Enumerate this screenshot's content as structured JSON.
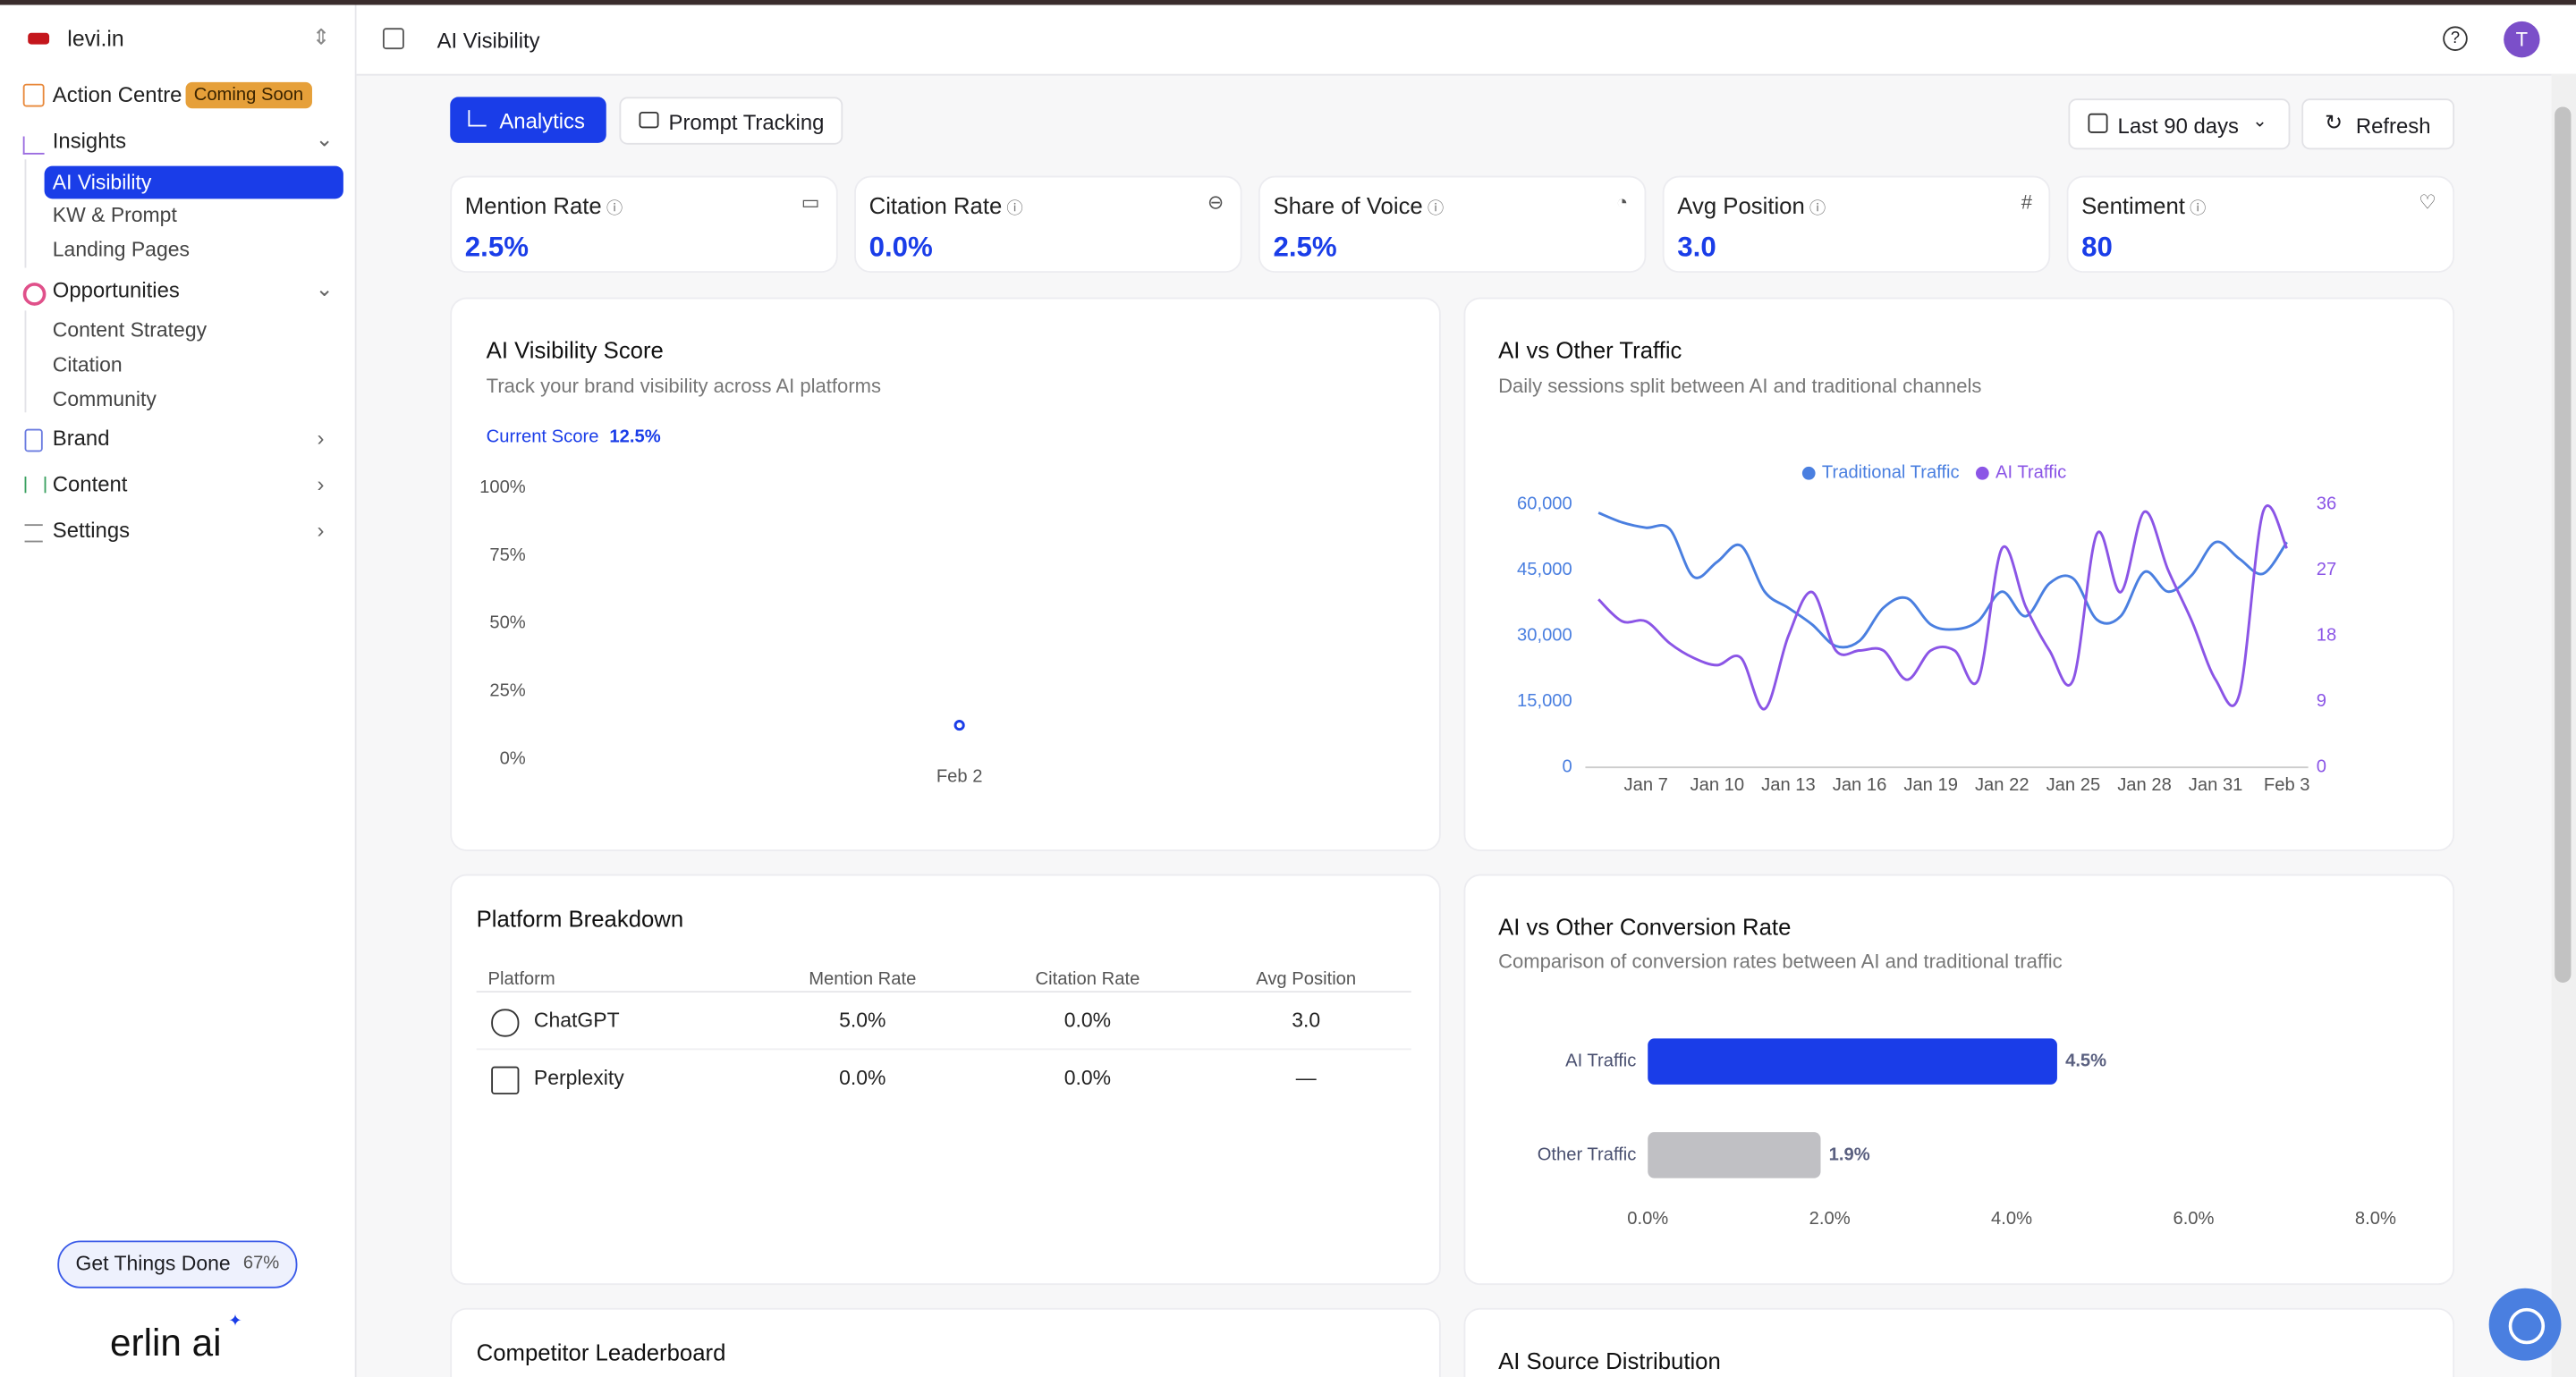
{
  "sidebar": {
    "workspace": "levi.in",
    "action_centre": "Action Centre",
    "badge": "Coming Soon",
    "insights": {
      "label": "Insights",
      "items": [
        "AI Visibility",
        "KW & Prompt",
        "Landing Pages"
      ]
    },
    "opportunities": {
      "label": "Opportunities",
      "items": [
        "Content Strategy",
        "Citation",
        "Community"
      ]
    },
    "brand": "Brand",
    "content": "Content",
    "settings": "Settings",
    "progress": {
      "label": "Get Things Done",
      "value": "67%"
    },
    "logo": "erlin ai"
  },
  "header": {
    "title": "AI Visibility",
    "avatar": "T"
  },
  "toolbar": {
    "tabs": [
      "Analytics",
      "Prompt Tracking"
    ],
    "range": "Last 90 days",
    "refresh": "Refresh"
  },
  "kpis": [
    {
      "label": "Mention Rate",
      "value": "2.5%"
    },
    {
      "label": "Citation Rate",
      "value": "0.0%"
    },
    {
      "label": "Share of Voice",
      "value": "2.5%"
    },
    {
      "label": "Avg Position",
      "value": "3.0"
    },
    {
      "label": "Sentiment",
      "value": "80"
    }
  ],
  "chart_data": [
    {
      "type": "line",
      "title": "AI Visibility Score",
      "subtitle": "Track your brand visibility across AI platforms",
      "current_score_label": "Current Score",
      "current_score": "12.5%",
      "categories": [
        "Feb 2"
      ],
      "values": [
        12.5
      ],
      "color": "#1a3de8",
      "ylim": [
        0,
        100
      ],
      "yticks": [
        {
          "value": 0,
          "label": "0%"
        },
        {
          "value": 25,
          "label": "25%"
        },
        {
          "value": 50,
          "label": "50%"
        },
        {
          "value": 75,
          "label": "75%"
        },
        {
          "value": 100,
          "label": "100%"
        }
      ]
    },
    {
      "type": "line",
      "title": "AI vs Other Traffic",
      "subtitle": "Daily sessions split between AI and traditional channels",
      "categories": [
        null,
        null,
        "Jan 7",
        null,
        null,
        "Jan 10",
        null,
        null,
        "Jan 13",
        null,
        null,
        "Jan 16",
        null,
        null,
        "Jan 19",
        null,
        null,
        "Jan 22",
        null,
        null,
        "Jan 25",
        null,
        null,
        "Jan 28",
        null,
        null,
        "Jan 31",
        null,
        null,
        "Feb 3"
      ],
      "series": [
        {
          "name": "Traditional Traffic",
          "color": "#4a7fe0",
          "values": [
            58100,
            55900,
            54700,
            54400,
            43500,
            46900,
            50600,
            40100,
            36400,
            32600,
            27700,
            28900,
            36400,
            38600,
            32600,
            31500,
            33400,
            40100,
            34500,
            42000,
            43100,
            33700,
            34500,
            44600,
            40100,
            43900,
            51400,
            47600,
            44200,
            51400
          ]
        },
        {
          "name": "AI Traffic",
          "color": "#8b55e6",
          "axis": "y2",
          "values": [
            23,
            20,
            20,
            17,
            15,
            14,
            15,
            8,
            18,
            24,
            16,
            16,
            16,
            12,
            16,
            16,
            12,
            30,
            22,
            16,
            12,
            32,
            24,
            35,
            27,
            20,
            12,
            10,
            35,
            30
          ]
        }
      ],
      "ylim": [
        0,
        60000
      ],
      "yticks": [
        0,
        {
          "value": 15000,
          "label": "15,000"
        },
        {
          "value": 30000,
          "label": "30,000"
        },
        {
          "value": 45000,
          "label": "45,000"
        },
        {
          "value": 60000,
          "label": "60,000"
        }
      ],
      "y2lim": [
        0,
        36
      ],
      "y2ticks": [
        0,
        9,
        18,
        27,
        36
      ],
      "legend": "top"
    },
    {
      "type": "bar",
      "orientation": "horizontal",
      "title": "AI vs Other Conversion Rate",
      "subtitle": "Comparison of conversion rates between AI and traditional traffic",
      "categories": [
        "AI Traffic",
        "Other Traffic"
      ],
      "values": [
        4.5,
        1.9
      ],
      "value_labels": [
        "4.5%",
        "1.9%"
      ],
      "colors": [
        "#1a3de8",
        "#c0c0c4"
      ],
      "xlim": [
        0,
        8
      ],
      "xticks": [
        {
          "value": 0,
          "label": "0.0%"
        },
        {
          "value": 2,
          "label": "2.0%"
        },
        {
          "value": 4,
          "label": "4.0%"
        },
        {
          "value": 6,
          "label": "6.0%"
        },
        {
          "value": 8,
          "label": "8.0%"
        }
      ]
    }
  ],
  "table": {
    "title": "Platform Breakdown",
    "columns": [
      "Platform",
      "Mention Rate",
      "Citation Rate",
      "Avg Position"
    ],
    "rows": [
      [
        "ChatGPT",
        "5.0%",
        "0.0%",
        "3.0"
      ],
      [
        "Perplexity",
        "0.0%",
        "0.0%",
        "—"
      ]
    ]
  },
  "more": {
    "competitor": "Competitor Leaderboard",
    "source": "AI Source Distribution"
  }
}
